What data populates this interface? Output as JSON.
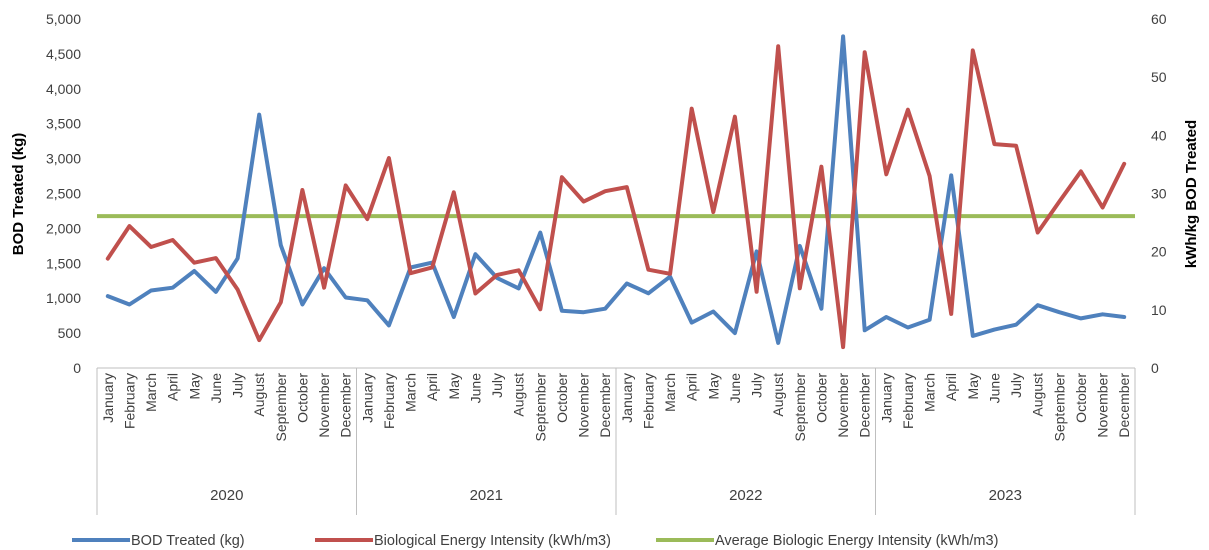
{
  "chart_data": {
    "type": "line",
    "y_label": "BOD Treated (kg)",
    "y2_label": "kWh/kg BOD Treated",
    "ylim": [
      0,
      5000
    ],
    "y_ticks": [
      0,
      500,
      1000,
      1500,
      2000,
      2500,
      3000,
      3500,
      4000,
      4500,
      5000
    ],
    "y_tick_labels": [
      "0",
      "500",
      "1,000",
      "1,500",
      "2,000",
      "2,500",
      "3,000",
      "3,500",
      "4,000",
      "4,500",
      "5,000"
    ],
    "y2lim": [
      0,
      60
    ],
    "y2_ticks": [
      0,
      10,
      20,
      30,
      40,
      50,
      60
    ],
    "y2_tick_labels": [
      "0",
      "10",
      "20",
      "30",
      "40",
      "50",
      "60"
    ],
    "years": [
      "2020",
      "2021",
      "2022",
      "2023"
    ],
    "months": [
      "January",
      "February",
      "March",
      "April",
      "May",
      "June",
      "July",
      "August",
      "September",
      "October",
      "November",
      "December"
    ],
    "gridlines": false,
    "legend_position": "bottom",
    "series": [
      {
        "name": "BOD Treated (kg)",
        "axis": "left",
        "color": "#4F81BD",
        "values": [
          1030,
          910,
          1110,
          1150,
          1390,
          1090,
          1570,
          3630,
          1760,
          910,
          1430,
          1010,
          970,
          610,
          1440,
          1510,
          730,
          1630,
          1290,
          1140,
          1940,
          820,
          800,
          850,
          1210,
          1070,
          1310,
          650,
          810,
          500,
          1670,
          360,
          1750,
          850,
          4750,
          540,
          730,
          580,
          690,
          2760,
          460,
          550,
          620,
          900,
          800,
          710,
          770,
          730
        ]
      },
      {
        "name": "Biological Energy Intensity (kWh/m3)",
        "axis": "right",
        "color": "#C0504D",
        "values": [
          18.8,
          24.4,
          20.8,
          22,
          18.1,
          18.9,
          13.5,
          4.8,
          11.3,
          30.6,
          13.8,
          31.4,
          25.6,
          36.1,
          16.3,
          17.3,
          30.2,
          12.8,
          16,
          16.8,
          10.1,
          32.8,
          28.6,
          30.4,
          31.1,
          16.9,
          16.2,
          44.6,
          26.8,
          43.2,
          13.1,
          55.3,
          13.7,
          34.6,
          3.6,
          54.3,
          33.3,
          44.4,
          33,
          9.3,
          54.6,
          38.5,
          38.2,
          23.3,
          28.6,
          33.8,
          27.6,
          35.1
        ]
      },
      {
        "name": "Average Biologic Energy Intensity (kWh/m3)",
        "axis": "right",
        "color": "#9BBB59",
        "constant": 26.1
      }
    ]
  }
}
